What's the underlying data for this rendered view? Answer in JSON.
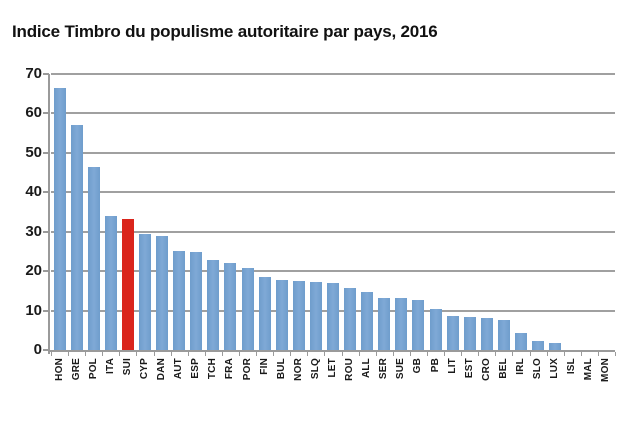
{
  "title": "Indice Timbro du populisme autoritaire par pays, 2016",
  "chart_data": {
    "type": "bar",
    "title": "Indice Timbro du populisme autoritaire par pays, 2016",
    "categories": [
      "HON",
      "GRE",
      "POL",
      "ITA",
      "SUI",
      "CYP",
      "DAN",
      "AUT",
      "ESP",
      "TCH",
      "FRA",
      "POR",
      "FIN",
      "BUL",
      "NOR",
      "SLQ",
      "LET",
      "ROU",
      "ALL",
      "SER",
      "SUE",
      "GB",
      "PB",
      "LIT",
      "EST",
      "CRO",
      "BEL",
      "IRL",
      "SLO",
      "LUX",
      "ISL",
      "MAL",
      "MON"
    ],
    "values": [
      66.4,
      57.1,
      46.3,
      33.9,
      33.1,
      29.5,
      29.0,
      25.1,
      24.8,
      22.9,
      22.0,
      20.7,
      18.5,
      17.7,
      17.5,
      17.3,
      16.9,
      15.7,
      14.8,
      13.3,
      13.2,
      12.8,
      10.4,
      8.5,
      8.3,
      8.0,
      7.5,
      4.4,
      2.3,
      1.7,
      0,
      0,
      0
    ],
    "highlight_category": "SUI",
    "yticks": [
      0,
      10,
      20,
      30,
      40,
      50,
      60,
      70
    ],
    "ylim": [
      0,
      70
    ],
    "xlabel": "",
    "ylabel": "",
    "grid": true,
    "legend_position": "none",
    "colors": {
      "bar": "#6f9dcc",
      "bar_light": "#7fa9d6",
      "highlight": "#da251c",
      "grid": "#a0a0a0",
      "axis": "#9a9a9a",
      "text": "#1a1a1a"
    }
  }
}
